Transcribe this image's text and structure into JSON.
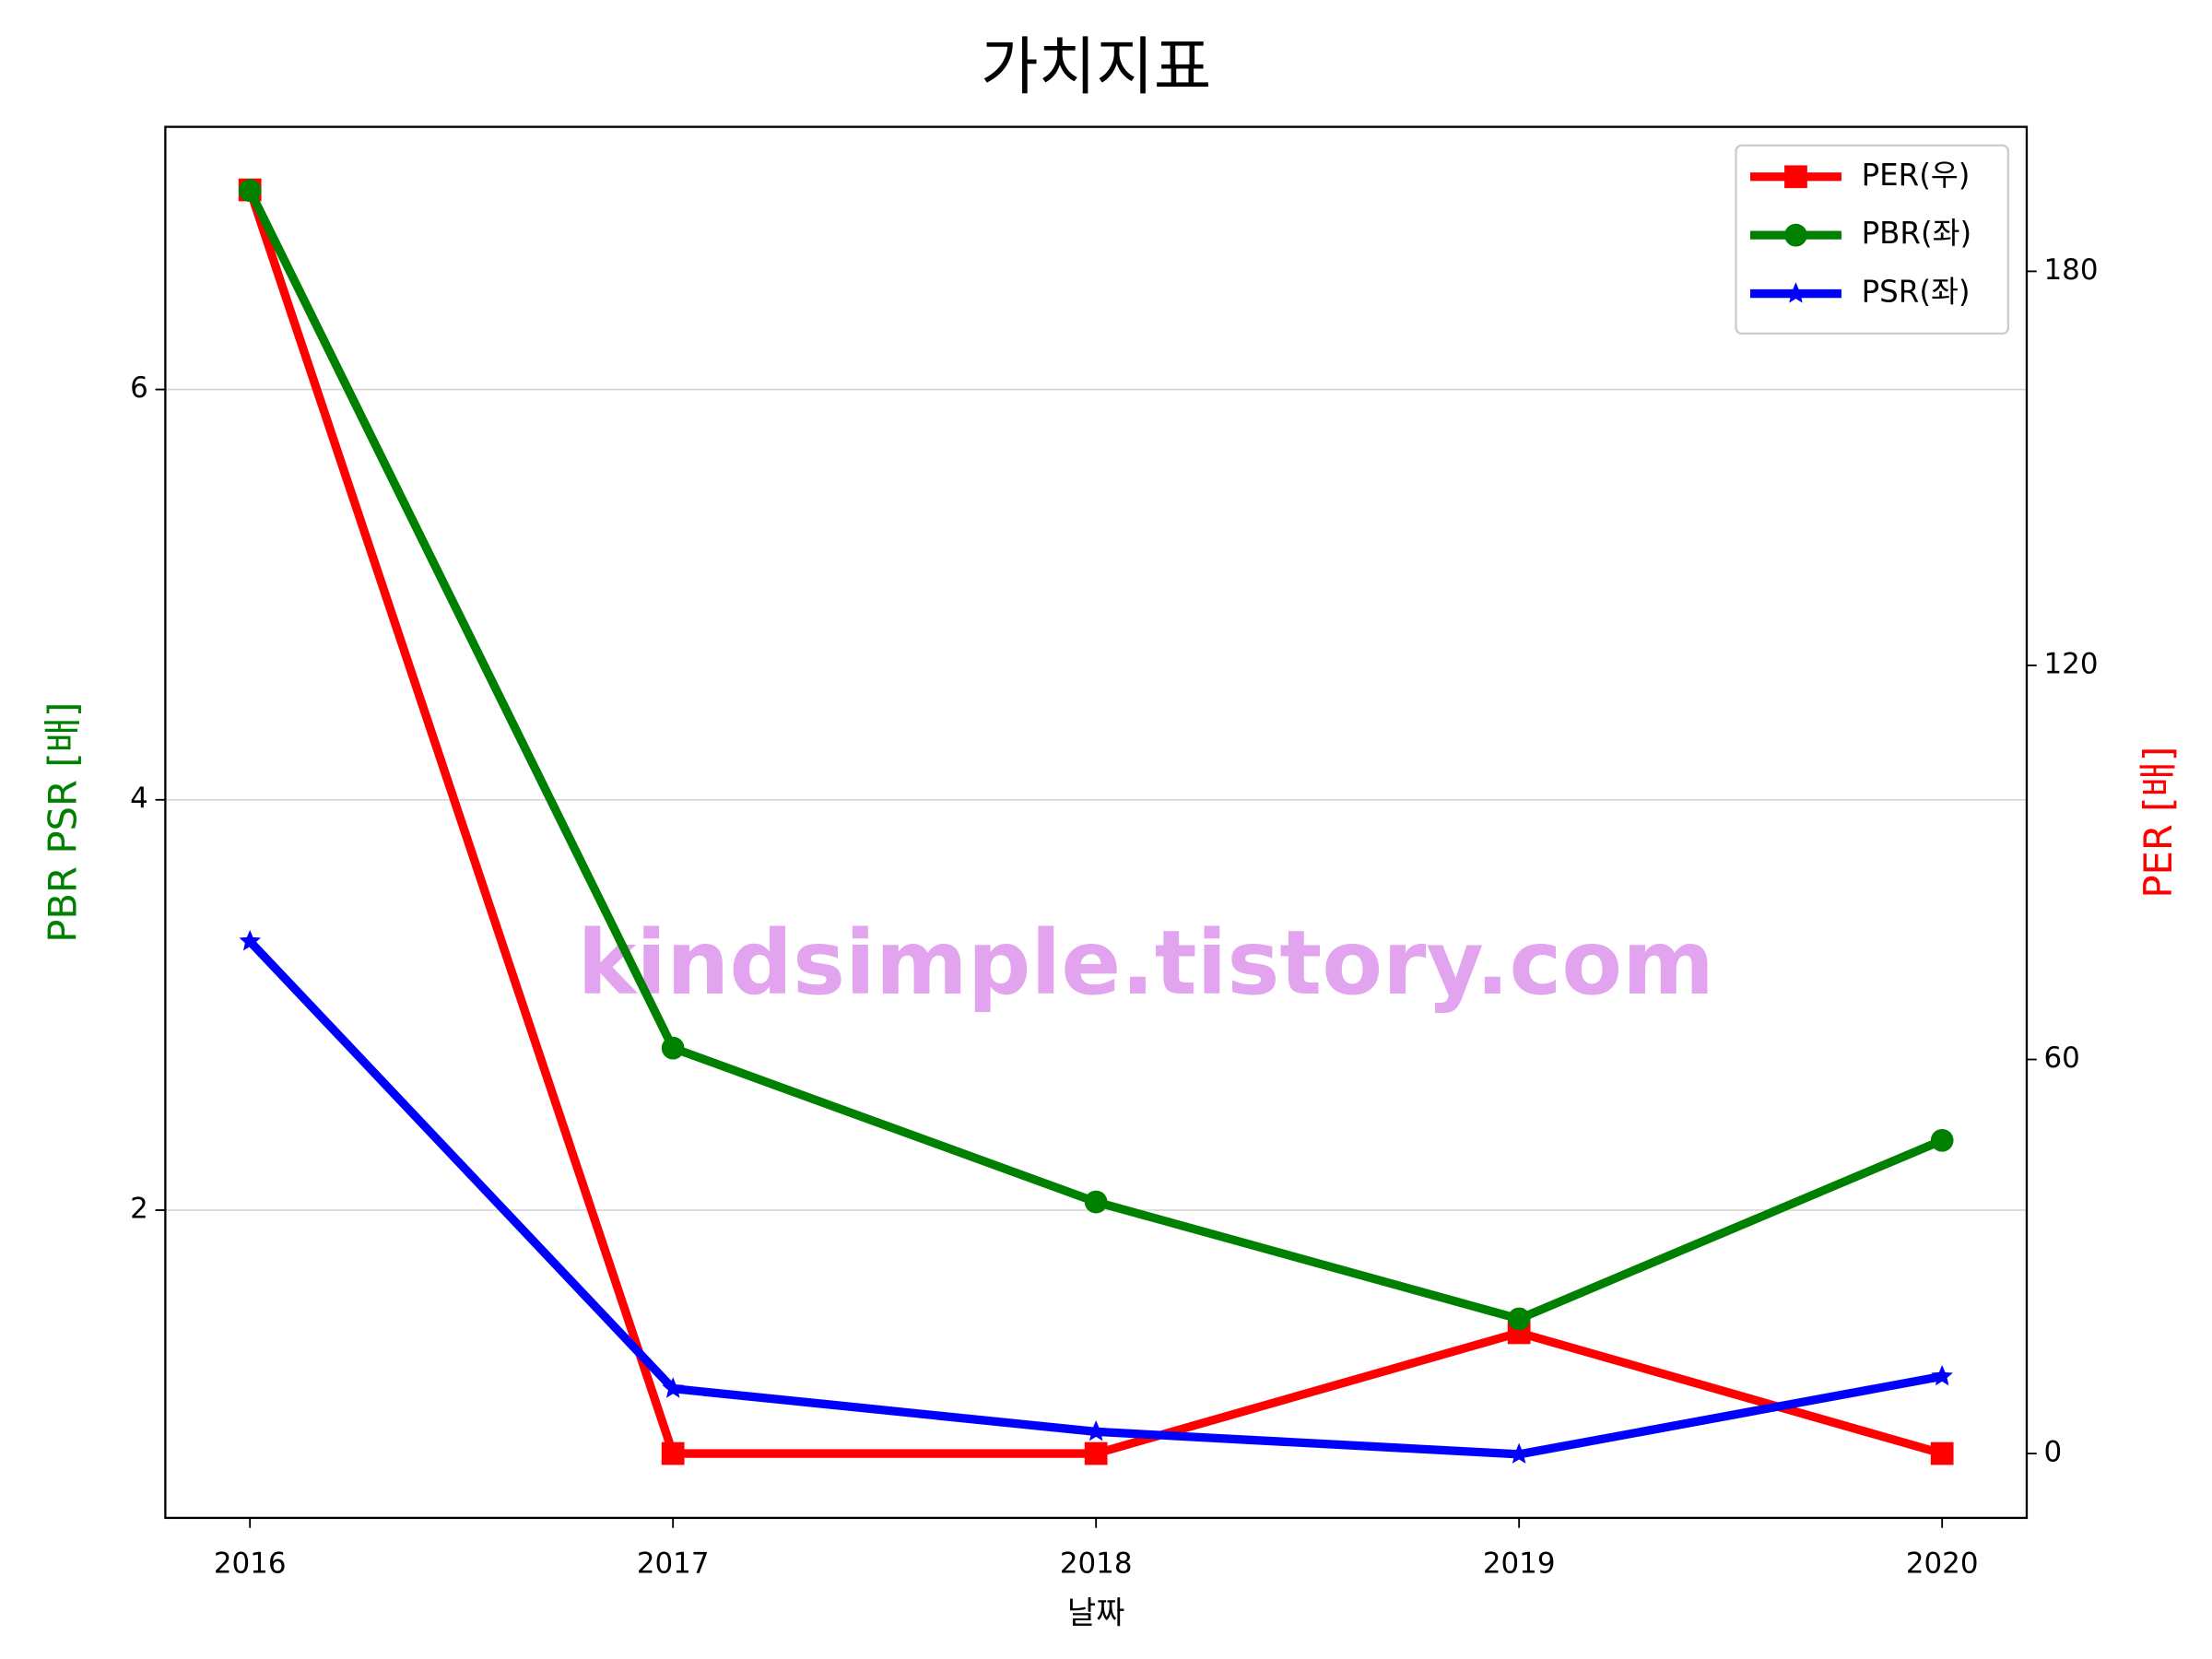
{
  "chart_data": {
    "type": "line",
    "title": "가치지표",
    "xlabel": "날짜",
    "ylabel": "PBR PSR [배]",
    "y2label": "PER [배]",
    "annotation": "kindsimple.tistory.com",
    "x": [
      2016,
      2017,
      2018,
      2019,
      2020
    ],
    "xlim": [
      2015.8,
      2020.2
    ],
    "xticks": [
      2016,
      2017,
      2018,
      2019,
      2020
    ],
    "ylim": [
      0.5,
      7.28
    ],
    "yticks": [
      2,
      4,
      6
    ],
    "y2lim": [
      -9.8,
      202
    ],
    "y2ticks": [
      0,
      60,
      120,
      180
    ],
    "grid": true,
    "legend": "upper right",
    "ylabel_color": "#008000",
    "y2label_color": "#ff0000",
    "series": [
      {
        "name": "PER(우)",
        "color": "#ff0000",
        "marker": "square",
        "axis": "y2",
        "values": [
          192.4,
          0,
          0,
          18.4,
          0
        ]
      },
      {
        "name": "PBR(좌)",
        "color": "#008000",
        "marker": "circle",
        "values": [
          6.97,
          2.79,
          2.04,
          1.47,
          2.34
        ]
      },
      {
        "name": "PSR(좌)",
        "color": "#0000ff",
        "marker": "star",
        "values": [
          3.31,
          1.13,
          0.92,
          0.81,
          1.19
        ]
      }
    ]
  }
}
